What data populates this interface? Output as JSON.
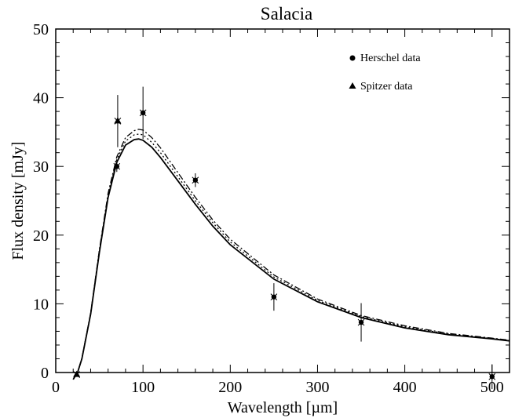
{
  "chart_data": {
    "type": "scatter",
    "title": "Salacia",
    "xlabel": "Wavelength [µm]",
    "ylabel": "Flux density [mJy]",
    "xlim": [
      0,
      520
    ],
    "ylim": [
      0,
      50
    ],
    "x_ticks": [
      0,
      100,
      200,
      300,
      400,
      500
    ],
    "y_ticks": [
      0,
      10,
      20,
      30,
      40,
      50
    ],
    "grid": false,
    "legend_position": "top-right",
    "series": [
      {
        "name": "Herschel data",
        "marker": "circle",
        "points": [
          {
            "x": 70,
            "y": 30.0,
            "err": 0.8
          },
          {
            "x": 100,
            "y": 37.8,
            "err": 3.8
          },
          {
            "x": 160,
            "y": 28.0,
            "err": 1.0
          },
          {
            "x": 250,
            "y": 11.0,
            "err": 2.0
          },
          {
            "x": 350,
            "y": 7.3,
            "err": 2.8
          },
          {
            "x": 500,
            "y": -0.6,
            "err": 1.8
          }
        ]
      },
      {
        "name": "Spitzer data",
        "marker": "triangle",
        "points": [
          {
            "x": 24,
            "y": -0.3,
            "err": 0.3
          },
          {
            "x": 71,
            "y": 36.6,
            "err": 3.8
          }
        ]
      },
      {
        "style": "solid",
        "x": [
          20,
          25,
          30,
          40,
          50,
          60,
          70,
          80,
          90,
          95,
          100,
          110,
          120,
          140,
          160,
          180,
          200,
          250,
          300,
          350,
          400,
          450,
          500,
          520
        ],
        "y": [
          -1.0,
          0.0,
          2.0,
          8.5,
          17.5,
          25.5,
          30.6,
          33.1,
          33.9,
          34.0,
          33.8,
          32.8,
          31.3,
          27.9,
          24.5,
          21.3,
          18.6,
          13.6,
          10.3,
          8.0,
          6.5,
          5.5,
          4.9,
          4.6
        ]
      },
      {
        "style": "dash-dot",
        "x": [
          20,
          25,
          30,
          40,
          50,
          60,
          70,
          80,
          90,
          95,
          100,
          110,
          120,
          140,
          160,
          180,
          200,
          250,
          300,
          350,
          400,
          450,
          500,
          520
        ],
        "y": [
          -1.0,
          0.0,
          2.1,
          8.7,
          17.9,
          26.1,
          31.4,
          34.2,
          35.2,
          35.4,
          35.3,
          34.2,
          32.7,
          29.1,
          25.5,
          22.2,
          19.4,
          14.2,
          10.7,
          8.3,
          6.8,
          5.7,
          5.0,
          4.7
        ]
      },
      {
        "style": "dotted",
        "x": [
          20,
          25,
          30,
          40,
          50,
          60,
          70,
          80,
          90,
          95,
          100,
          110,
          120,
          140,
          160,
          180,
          200,
          250,
          300,
          350,
          400,
          450,
          500,
          520
        ],
        "y": [
          -1.0,
          0.0,
          2.0,
          8.6,
          17.7,
          25.8,
          31.0,
          33.7,
          34.6,
          34.7,
          34.6,
          33.5,
          32.0,
          28.5,
          25.0,
          21.8,
          19.0,
          13.9,
          10.5,
          8.15,
          6.65,
          5.6,
          4.95,
          4.65
        ]
      }
    ]
  }
}
